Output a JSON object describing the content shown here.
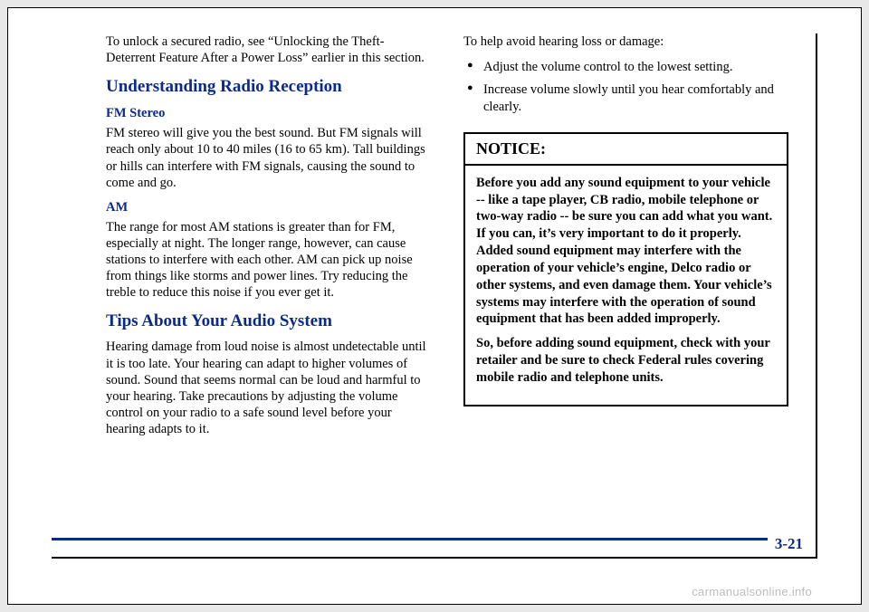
{
  "colors": {
    "heading": "#0b2a8a",
    "rule": "#0b2a8a",
    "text": "#000000",
    "page_bg": "#ffffff",
    "outer_bg": "#e8e8e8",
    "watermark": "#bdbdbd"
  },
  "left": {
    "intro": "To unlock a secured radio, see “Unlocking the Theft-Deterrent Feature After a Power Loss” earlier in this section.",
    "h_reception": "Understanding Radio Reception",
    "h_fm": "FM Stereo",
    "p_fm": "FM stereo will give you the best sound. But FM signals will reach only about 10 to 40 miles (16 to 65 km). Tall buildings or hills can interfere with FM signals, causing the sound to come and go.",
    "h_am": "AM",
    "p_am": "The range for most AM stations is greater than for FM, especially at night. The longer range, however, can cause stations to interfere with each other. AM can pick up noise from things like storms and power lines. Try reducing the treble to reduce this noise if you ever get it.",
    "h_tips": "Tips About Your Audio System",
    "p_tips": "Hearing damage from loud noise is almost undetectable until it is too late. Your hearing can adapt to higher volumes of sound. Sound that seems normal can be loud and harmful to your hearing. Take precautions by adjusting the volume control on your radio to a safe sound level before your hearing adapts to it."
  },
  "right": {
    "p_help": "To help avoid hearing loss or damage:",
    "bullets": [
      "Adjust the volume control to the lowest setting.",
      "Increase volume slowly until you hear comfortably and clearly."
    ],
    "notice_title": "NOTICE:",
    "notice_p1": "Before you add any sound equipment to your vehicle -- like a tape player, CB radio, mobile telephone or two-way radio -- be sure you can add what you want. If you can, it’s very important to do it properly. Added sound equipment may interfere with the operation of your vehicle’s engine, Delco radio or other systems, and even damage them. Your vehicle’s systems may interfere with the operation of sound equipment that has been added improperly.",
    "notice_p2": "So, before adding sound equipment, check with your retailer and be sure to check Federal rules covering mobile radio and telephone units."
  },
  "page_number": "3-21",
  "watermark": "carmanualsonline.info"
}
